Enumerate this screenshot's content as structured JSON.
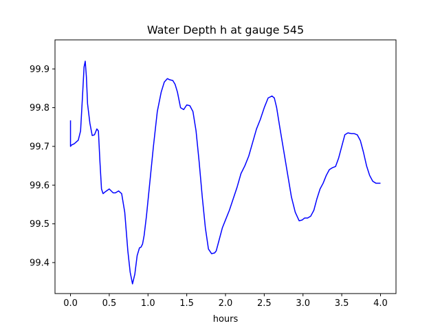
{
  "chart_data": {
    "type": "line",
    "title": "Water Depth h at gauge 545",
    "xlabel": "hours",
    "ylabel": "",
    "xlim": [
      -0.2,
      4.2
    ],
    "ylim": [
      99.32,
      99.975
    ],
    "x_ticks": [
      0.0,
      0.5,
      1.0,
      1.5,
      2.0,
      2.5,
      3.0,
      3.5,
      4.0
    ],
    "x_tick_labels": [
      "0.0",
      "0.5",
      "1.0",
      "1.5",
      "2.0",
      "2.5",
      "3.0",
      "3.5",
      "4.0"
    ],
    "y_ticks": [
      99.4,
      99.5,
      99.6,
      99.7,
      99.8,
      99.9
    ],
    "y_tick_labels": [
      "99.4",
      "99.5",
      "99.6",
      "99.7",
      "99.8",
      "99.9"
    ],
    "grid": false,
    "series": [
      {
        "color": "#0000ff",
        "x": [
          0.0,
          0.0,
          0.01,
          0.05,
          0.1,
          0.13,
          0.155,
          0.175,
          0.19,
          0.205,
          0.22,
          0.25,
          0.28,
          0.31,
          0.34,
          0.36,
          0.38,
          0.4,
          0.42,
          0.45,
          0.5,
          0.55,
          0.58,
          0.62,
          0.66,
          0.7,
          0.74,
          0.77,
          0.8,
          0.83,
          0.86,
          0.89,
          0.91,
          0.93,
          0.95,
          0.98,
          1.02,
          1.07,
          1.12,
          1.17,
          1.21,
          1.25,
          1.28,
          1.32,
          1.35,
          1.38,
          1.42,
          1.46,
          1.5,
          1.54,
          1.58,
          1.62,
          1.66,
          1.7,
          1.74,
          1.78,
          1.82,
          1.86,
          1.88,
          1.92,
          1.96,
          2.0,
          2.05,
          2.1,
          2.15,
          2.2,
          2.25,
          2.3,
          2.35,
          2.4,
          2.45,
          2.5,
          2.55,
          2.6,
          2.63,
          2.66,
          2.7,
          2.75,
          2.8,
          2.85,
          2.9,
          2.95,
          2.99,
          3.02,
          3.06,
          3.1,
          3.14,
          3.18,
          3.22,
          3.26,
          3.3,
          3.34,
          3.38,
          3.42,
          3.46,
          3.5,
          3.54,
          3.58,
          3.62,
          3.66,
          3.7,
          3.74,
          3.78,
          3.82,
          3.86,
          3.9,
          3.94,
          3.98,
          4.0
        ],
        "y": [
          99.767,
          99.7,
          99.703,
          99.707,
          99.716,
          99.74,
          99.83,
          99.905,
          99.92,
          99.88,
          99.81,
          99.76,
          99.728,
          99.73,
          99.745,
          99.74,
          99.66,
          99.59,
          99.578,
          99.583,
          99.59,
          99.58,
          99.58,
          99.585,
          99.578,
          99.53,
          99.43,
          99.375,
          99.345,
          99.37,
          99.418,
          99.438,
          99.44,
          99.448,
          99.47,
          99.52,
          99.6,
          99.7,
          99.79,
          99.84,
          99.866,
          99.875,
          99.872,
          99.87,
          99.86,
          99.84,
          99.8,
          99.795,
          99.807,
          99.805,
          99.79,
          99.74,
          99.66,
          99.57,
          99.49,
          99.435,
          99.423,
          99.425,
          99.43,
          99.46,
          99.49,
          99.51,
          99.535,
          99.565,
          99.595,
          99.63,
          99.65,
          99.675,
          99.71,
          99.745,
          99.77,
          99.8,
          99.825,
          99.83,
          99.825,
          99.8,
          99.75,
          99.69,
          99.63,
          99.57,
          99.53,
          99.508,
          99.51,
          99.515,
          99.515,
          99.52,
          99.535,
          99.565,
          99.59,
          99.605,
          99.625,
          99.64,
          99.645,
          99.648,
          99.67,
          99.7,
          99.73,
          99.735,
          99.733,
          99.733,
          99.73,
          99.715,
          99.685,
          99.65,
          99.625,
          99.61,
          99.605,
          99.605,
          99.605
        ]
      }
    ]
  }
}
